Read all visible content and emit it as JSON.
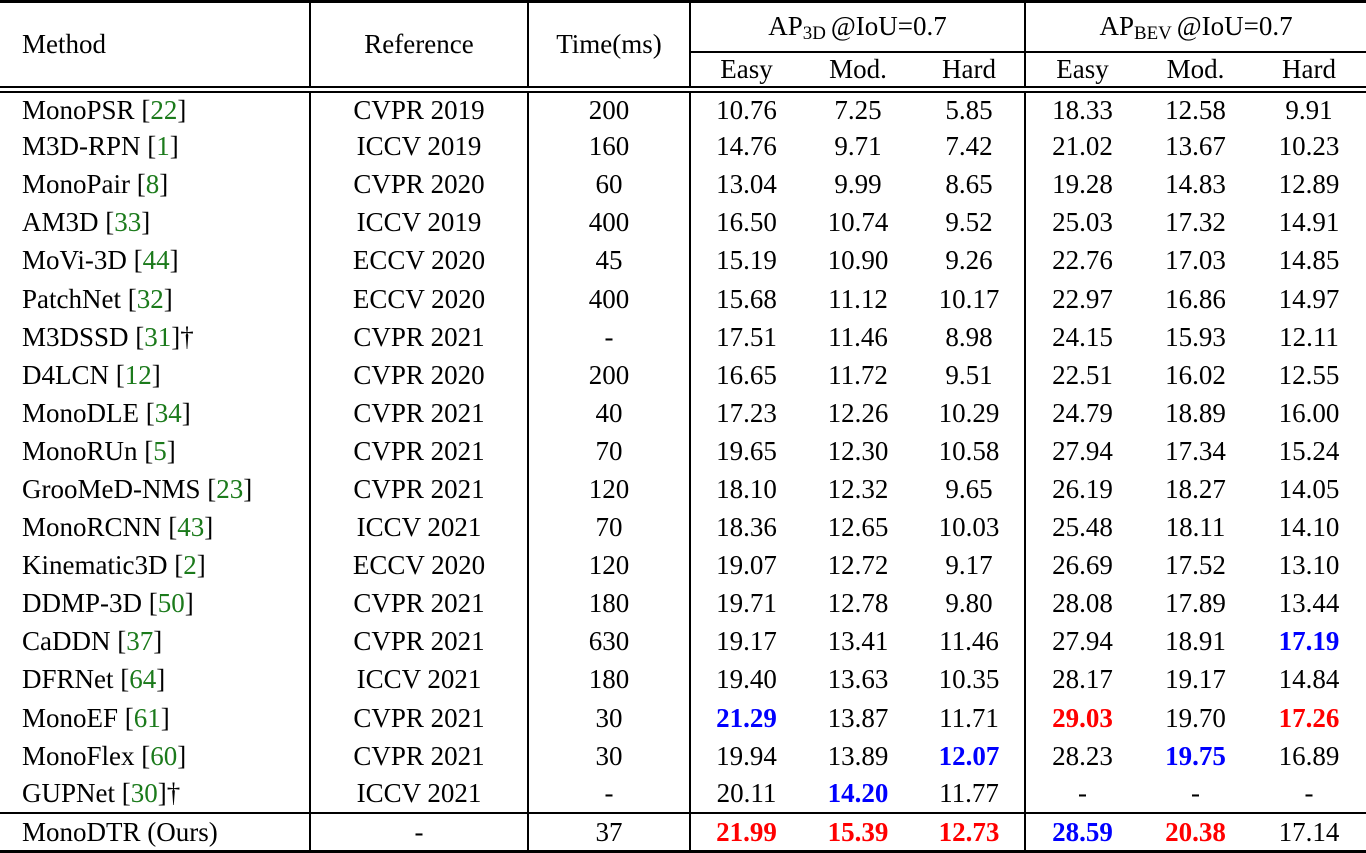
{
  "colors": {
    "citation_green": "#1b7a1b",
    "best_red": "#ff0000",
    "second_best_blue": "#0000ff",
    "text": "#000000",
    "background": "#ffffff"
  },
  "table": {
    "header": {
      "method": "Method",
      "reference": "Reference",
      "time": "Time(ms)",
      "groups": [
        {
          "metric": "AP",
          "subscript": "3D",
          "condition": "@IoU=0.7"
        },
        {
          "metric": "AP",
          "subscript": "BEV",
          "condition": "@IoU=0.7"
        }
      ],
      "subcolumns": [
        "Easy",
        "Mod.",
        "Hard",
        "Easy",
        "Mod.",
        "Hard"
      ]
    },
    "rows": [
      {
        "method": "MonoPSR",
        "citation": "22",
        "dagger": false,
        "reference": "CVPR 2019",
        "time": "200",
        "is_ours": false,
        "values": [
          {
            "v": "10.76"
          },
          {
            "v": "7.25"
          },
          {
            "v": "5.85"
          },
          {
            "v": "18.33"
          },
          {
            "v": "12.58"
          },
          {
            "v": "9.91"
          }
        ]
      },
      {
        "method": "M3D-RPN",
        "citation": "1",
        "dagger": false,
        "reference": "ICCV 2019",
        "time": "160",
        "is_ours": false,
        "values": [
          {
            "v": "14.76"
          },
          {
            "v": "9.71"
          },
          {
            "v": "7.42"
          },
          {
            "v": "21.02"
          },
          {
            "v": "13.67"
          },
          {
            "v": "10.23"
          }
        ]
      },
      {
        "method": "MonoPair",
        "citation": "8",
        "dagger": false,
        "reference": "CVPR 2020",
        "time": "60",
        "is_ours": false,
        "values": [
          {
            "v": "13.04"
          },
          {
            "v": "9.99"
          },
          {
            "v": "8.65"
          },
          {
            "v": "19.28"
          },
          {
            "v": "14.83"
          },
          {
            "v": "12.89"
          }
        ]
      },
      {
        "method": "AM3D",
        "citation": "33",
        "dagger": false,
        "reference": "ICCV 2019",
        "time": "400",
        "is_ours": false,
        "values": [
          {
            "v": "16.50"
          },
          {
            "v": "10.74"
          },
          {
            "v": "9.52"
          },
          {
            "v": "25.03"
          },
          {
            "v": "17.32"
          },
          {
            "v": "14.91"
          }
        ]
      },
      {
        "method": "MoVi-3D",
        "citation": "44",
        "dagger": false,
        "reference": "ECCV 2020",
        "time": "45",
        "is_ours": false,
        "values": [
          {
            "v": "15.19"
          },
          {
            "v": "10.90"
          },
          {
            "v": "9.26"
          },
          {
            "v": "22.76"
          },
          {
            "v": "17.03"
          },
          {
            "v": "14.85"
          }
        ]
      },
      {
        "method": "PatchNet",
        "citation": "32",
        "dagger": false,
        "reference": "ECCV 2020",
        "time": "400",
        "is_ours": false,
        "values": [
          {
            "v": "15.68"
          },
          {
            "v": "11.12"
          },
          {
            "v": "10.17"
          },
          {
            "v": "22.97"
          },
          {
            "v": "16.86"
          },
          {
            "v": "14.97"
          }
        ]
      },
      {
        "method": "M3DSSD",
        "citation": "31",
        "dagger": true,
        "reference": "CVPR 2021",
        "time": "-",
        "is_ours": false,
        "values": [
          {
            "v": "17.51"
          },
          {
            "v": "11.46"
          },
          {
            "v": "8.98"
          },
          {
            "v": "24.15"
          },
          {
            "v": "15.93"
          },
          {
            "v": "12.11"
          }
        ]
      },
      {
        "method": "D4LCN",
        "citation": "12",
        "dagger": false,
        "reference": "CVPR 2020",
        "time": "200",
        "is_ours": false,
        "values": [
          {
            "v": "16.65"
          },
          {
            "v": "11.72"
          },
          {
            "v": "9.51"
          },
          {
            "v": "22.51"
          },
          {
            "v": "16.02"
          },
          {
            "v": "12.55"
          }
        ]
      },
      {
        "method": "MonoDLE",
        "citation": "34",
        "dagger": false,
        "reference": "CVPR 2021",
        "time": "40",
        "is_ours": false,
        "values": [
          {
            "v": "17.23"
          },
          {
            "v": "12.26"
          },
          {
            "v": "10.29"
          },
          {
            "v": "24.79"
          },
          {
            "v": "18.89"
          },
          {
            "v": "16.00"
          }
        ]
      },
      {
        "method": "MonoRUn",
        "citation": "5",
        "dagger": false,
        "reference": "CVPR 2021",
        "time": "70",
        "is_ours": false,
        "values": [
          {
            "v": "19.65"
          },
          {
            "v": "12.30"
          },
          {
            "v": "10.58"
          },
          {
            "v": "27.94"
          },
          {
            "v": "17.34"
          },
          {
            "v": "15.24"
          }
        ]
      },
      {
        "method": "GrooMeD-NMS",
        "citation": "23",
        "dagger": false,
        "reference": "CVPR 2021",
        "time": "120",
        "is_ours": false,
        "values": [
          {
            "v": "18.10"
          },
          {
            "v": "12.32"
          },
          {
            "v": "9.65"
          },
          {
            "v": "26.19"
          },
          {
            "v": "18.27"
          },
          {
            "v": "14.05"
          }
        ]
      },
      {
        "method": "MonoRCNN",
        "citation": "43",
        "dagger": false,
        "reference": "ICCV 2021",
        "time": "70",
        "is_ours": false,
        "values": [
          {
            "v": "18.36"
          },
          {
            "v": "12.65"
          },
          {
            "v": "10.03"
          },
          {
            "v": "25.48"
          },
          {
            "v": "18.11"
          },
          {
            "v": "14.10"
          }
        ]
      },
      {
        "method": "Kinematic3D",
        "citation": "2",
        "dagger": false,
        "reference": "ECCV 2020",
        "time": "120",
        "is_ours": false,
        "values": [
          {
            "v": "19.07"
          },
          {
            "v": "12.72"
          },
          {
            "v": "9.17"
          },
          {
            "v": "26.69"
          },
          {
            "v": "17.52"
          },
          {
            "v": "13.10"
          }
        ]
      },
      {
        "method": "DDMP-3D",
        "citation": "50",
        "dagger": false,
        "reference": "CVPR 2021",
        "time": "180",
        "is_ours": false,
        "values": [
          {
            "v": "19.71"
          },
          {
            "v": "12.78"
          },
          {
            "v": "9.80"
          },
          {
            "v": "28.08"
          },
          {
            "v": "17.89"
          },
          {
            "v": "13.44"
          }
        ]
      },
      {
        "method": "CaDDN",
        "citation": "37",
        "dagger": false,
        "reference": "CVPR 2021",
        "time": "630",
        "is_ours": false,
        "values": [
          {
            "v": "19.17"
          },
          {
            "v": "13.41"
          },
          {
            "v": "11.46"
          },
          {
            "v": "27.94"
          },
          {
            "v": "18.91"
          },
          {
            "v": "17.19",
            "c": "blue"
          }
        ]
      },
      {
        "method": "DFRNet",
        "citation": "64",
        "dagger": false,
        "reference": "ICCV 2021",
        "time": "180",
        "is_ours": false,
        "values": [
          {
            "v": "19.40"
          },
          {
            "v": "13.63"
          },
          {
            "v": "10.35"
          },
          {
            "v": "28.17"
          },
          {
            "v": "19.17"
          },
          {
            "v": "14.84"
          }
        ]
      },
      {
        "method": "MonoEF",
        "citation": "61",
        "dagger": false,
        "reference": "CVPR 2021",
        "time": "30",
        "is_ours": false,
        "values": [
          {
            "v": "21.29",
            "c": "blue"
          },
          {
            "v": "13.87"
          },
          {
            "v": "11.71"
          },
          {
            "v": "29.03",
            "c": "red"
          },
          {
            "v": "19.70"
          },
          {
            "v": "17.26",
            "c": "red"
          }
        ]
      },
      {
        "method": "MonoFlex",
        "citation": "60",
        "dagger": false,
        "reference": "CVPR 2021",
        "time": "30",
        "is_ours": false,
        "values": [
          {
            "v": "19.94"
          },
          {
            "v": "13.89"
          },
          {
            "v": "12.07",
            "c": "blue"
          },
          {
            "v": "28.23"
          },
          {
            "v": "19.75",
            "c": "blue"
          },
          {
            "v": "16.89"
          }
        ]
      },
      {
        "method": "GUPNet",
        "citation": "30",
        "dagger": true,
        "reference": "ICCV 2021",
        "time": "-",
        "is_ours": false,
        "values": [
          {
            "v": "20.11"
          },
          {
            "v": "14.20",
            "c": "blue"
          },
          {
            "v": "11.77"
          },
          {
            "v": "-"
          },
          {
            "v": "-"
          },
          {
            "v": "-"
          }
        ]
      },
      {
        "method": "MonoDTR (Ours)",
        "citation": null,
        "dagger": false,
        "reference": "-",
        "time": "37",
        "is_ours": true,
        "values": [
          {
            "v": "21.99",
            "c": "red"
          },
          {
            "v": "15.39",
            "c": "red"
          },
          {
            "v": "12.73",
            "c": "red"
          },
          {
            "v": "28.59",
            "c": "blue"
          },
          {
            "v": "20.38",
            "c": "red"
          },
          {
            "v": "17.14"
          }
        ]
      }
    ]
  }
}
